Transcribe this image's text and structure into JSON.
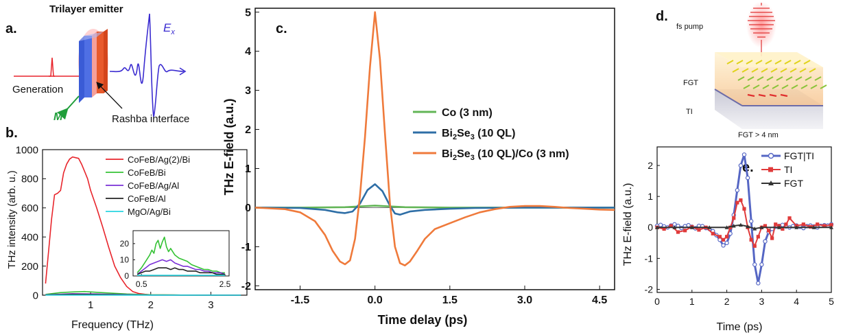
{
  "panel_a": {
    "letter": "a.",
    "title": "Trilayer emitter",
    "label_generation": "Generation",
    "label_m": "M",
    "label_rashba": "Rashba interface",
    "label_ex_main": "E",
    "label_ex_sub": "x",
    "colors": {
      "pulse": "#e8242b",
      "wave": "#3a2bd0",
      "m_arrow": "#1f9e3a"
    }
  },
  "panel_d": {
    "letter": "d.",
    "label_pump": "fs pump",
    "label_fgt": "FGT",
    "label_ti": "TI",
    "label_condition": "FGT > 4 nm"
  },
  "chart_data": [
    {
      "id": "b",
      "letter": "b.",
      "type": "line",
      "xlabel": "Frequency (THz)",
      "ylabel": "THz intensity (arb. u.)",
      "xlim": [
        0.2,
        3.6
      ],
      "ylim": [
        0,
        1000
      ],
      "xticks": [
        1,
        2,
        3
      ],
      "yticks": [
        0,
        200,
        400,
        600,
        800,
        1000
      ],
      "legend_position": "top-right",
      "series": [
        {
          "name": "CoFeB/Ag(2)/Bi",
          "color": "#e8242b",
          "x": [
            0.25,
            0.3,
            0.35,
            0.4,
            0.45,
            0.5,
            0.55,
            0.6,
            0.65,
            0.7,
            0.75,
            0.8,
            0.85,
            0.9,
            0.95,
            1.0,
            1.1,
            1.2,
            1.3,
            1.4,
            1.5,
            1.6,
            1.7,
            1.8,
            1.9,
            2.0,
            2.2,
            2.5,
            3.0,
            3.5
          ],
          "y": [
            80,
            300,
            520,
            690,
            700,
            720,
            840,
            900,
            935,
            950,
            945,
            940,
            900,
            850,
            800,
            720,
            600,
            470,
            330,
            200,
            120,
            60,
            25,
            12,
            6,
            3,
            2,
            1,
            0,
            0
          ]
        },
        {
          "name": "CoFeB/Bi",
          "color": "#34c234",
          "x": [
            0.25,
            0.5,
            0.7,
            0.9,
            1.1,
            1.3,
            1.6,
            2.0,
            2.5,
            3.5
          ],
          "y": [
            5,
            18,
            22,
            25,
            20,
            15,
            8,
            3,
            1,
            0
          ]
        },
        {
          "name": "CoFeB/Ag/Al",
          "color": "#7a2fd6",
          "x": [
            0.25,
            0.7,
            1.1,
            1.6,
            2.0,
            3.5
          ],
          "y": [
            3,
            10,
            8,
            4,
            1,
            0
          ]
        },
        {
          "name": "CoFeB/Al",
          "color": "#222222",
          "x": [
            0.25,
            0.7,
            1.1,
            1.6,
            2.0,
            3.5
          ],
          "y": [
            2,
            6,
            5,
            2,
            1,
            0
          ]
        },
        {
          "name": "MgO/Ag/Bi",
          "color": "#28d4e0",
          "x": [
            0.25,
            3.5
          ],
          "y": [
            1,
            0
          ]
        }
      ],
      "inset": {
        "xlim": [
          0.3,
          2.6
        ],
        "ylim": [
          0,
          28
        ],
        "xticks": [
          0.5,
          2.5
        ],
        "yticks": [
          0,
          10,
          20
        ],
        "series": [
          {
            "color": "#34c234",
            "x": [
              0.4,
              0.5,
              0.6,
              0.7,
              0.75,
              0.8,
              0.85,
              0.9,
              0.95,
              1.0,
              1.05,
              1.1,
              1.15,
              1.2,
              1.3,
              1.4,
              1.5,
              1.6,
              1.7,
              1.8,
              1.9,
              2.0,
              2.1,
              2.2,
              2.3,
              2.4,
              2.5
            ],
            "y": [
              2,
              5,
              9,
              13,
              16,
              14,
              20,
              22,
              17,
              21,
              24,
              18,
              15,
              17,
              13,
              11,
              10,
              9,
              7,
              6,
              5,
              4,
              4,
              3,
              3,
              2,
              2
            ]
          },
          {
            "color": "#7a2fd6",
            "x": [
              0.4,
              0.5,
              0.6,
              0.7,
              0.8,
              0.9,
              1.0,
              1.1,
              1.2,
              1.3,
              1.4,
              1.5,
              1.6,
              1.7,
              1.8,
              1.9,
              2.0,
              2.1,
              2.2,
              2.3,
              2.4,
              2.5
            ],
            "y": [
              1,
              3,
              5,
              7,
              8,
              9,
              10,
              9,
              10,
              8,
              7,
              6,
              6,
              5,
              4,
              4,
              3,
              3,
              2,
              2,
              2,
              1
            ]
          },
          {
            "color": "#222222",
            "x": [
              0.4,
              0.5,
              0.6,
              0.7,
              0.8,
              0.9,
              1.0,
              1.1,
              1.2,
              1.3,
              1.4,
              1.5,
              1.6,
              1.7,
              1.8,
              1.9,
              2.0,
              2.1,
              2.2,
              2.3,
              2.4,
              2.5
            ],
            "y": [
              1,
              2,
              3,
              3,
              4,
              5,
              5,
              5,
              4,
              5,
              4,
              4,
              3,
              3,
              3,
              2,
              2,
              2,
              2,
              1,
              1,
              1
            ]
          },
          {
            "color": "#28d4e0",
            "x": [
              0.4,
              2.5
            ],
            "y": [
              0.4,
              0.4
            ]
          }
        ]
      }
    },
    {
      "id": "c",
      "letter": "c.",
      "type": "line",
      "xlabel": "Time delay (ps)",
      "ylabel": "THz E-field (a.u.)",
      "xlim": [
        -2.4,
        4.8
      ],
      "ylim": [
        -2.1,
        5.1
      ],
      "xticks": [
        -1.5,
        0.0,
        1.5,
        3.0,
        4.5
      ],
      "xtick_labels": [
        "-1.5",
        "0.0",
        "1.5",
        "3.0",
        "4.5"
      ],
      "yticks": [
        -2,
        -1,
        0,
        1,
        2,
        3,
        4,
        5
      ],
      "legend_position": "center-right",
      "series": [
        {
          "name": "Co (3 nm)",
          "color": "#62b556",
          "x": [
            -2.4,
            -1.5,
            -0.6,
            -0.3,
            0.0,
            0.3,
            0.6,
            1.5,
            3.0,
            4.8
          ],
          "y": [
            0,
            0,
            0.01,
            0.03,
            0.05,
            0.03,
            0.01,
            0,
            0,
            0
          ]
        },
        {
          "name_main": "Bi",
          "name_sub": "2",
          "name_rest": "Se",
          "name_sub2": "3",
          "name_tail": " (10 QL)",
          "color": "#2e6ea6",
          "x": [
            -2.4,
            -1.5,
            -1.0,
            -0.75,
            -0.6,
            -0.45,
            -0.3,
            -0.15,
            0.0,
            0.15,
            0.3,
            0.4,
            0.5,
            0.7,
            1.0,
            1.5,
            2.0,
            3.0,
            4.8
          ],
          "y": [
            0,
            -0.01,
            -0.06,
            -0.12,
            -0.14,
            -0.1,
            0.1,
            0.45,
            0.6,
            0.42,
            0.05,
            -0.15,
            -0.18,
            -0.1,
            -0.06,
            -0.03,
            -0.01,
            0,
            0
          ]
        },
        {
          "name_main": "Bi",
          "name_sub": "2",
          "name_rest": "Se",
          "name_sub2": "3",
          "name_tail": " (10 QL)/Co (3 nm)",
          "color": "#ef7a3b",
          "x": [
            -2.4,
            -1.8,
            -1.5,
            -1.2,
            -1.0,
            -0.85,
            -0.7,
            -0.6,
            -0.5,
            -0.4,
            -0.3,
            -0.2,
            -0.1,
            0.0,
            0.1,
            0.2,
            0.3,
            0.4,
            0.5,
            0.6,
            0.7,
            0.85,
            1.0,
            1.2,
            1.5,
            1.8,
            2.1,
            2.4,
            2.7,
            3.0,
            3.3,
            3.6,
            3.9,
            4.2,
            4.5,
            4.8
          ],
          "y": [
            0,
            -0.04,
            -0.12,
            -0.35,
            -0.7,
            -1.1,
            -1.38,
            -1.45,
            -1.35,
            -0.8,
            0.3,
            1.8,
            3.6,
            5.0,
            3.8,
            1.9,
            0.1,
            -1.0,
            -1.42,
            -1.48,
            -1.38,
            -1.1,
            -0.8,
            -0.55,
            -0.4,
            -0.25,
            -0.12,
            -0.04,
            0.02,
            0.04,
            0.04,
            0.02,
            -0.01,
            -0.03,
            -0.05,
            -0.06
          ]
        }
      ]
    },
    {
      "id": "e",
      "letter": "e.",
      "type": "line",
      "xlabel": "Time (ps)",
      "ylabel": "THz E-field (a.u.)",
      "xlim": [
        0,
        5
      ],
      "ylim": [
        -2.1,
        2.6
      ],
      "xticks": [
        0,
        1,
        2,
        3,
        4,
        5
      ],
      "yticks": [
        -2,
        -1,
        0,
        1,
        2
      ],
      "legend_position": "top-right",
      "series": [
        {
          "name": "FGT|TI",
          "color": "#5566c4",
          "marker": "circle",
          "x": [
            0.0,
            0.1,
            0.2,
            0.3,
            0.4,
            0.5,
            0.6,
            0.7,
            0.8,
            0.9,
            1.0,
            1.1,
            1.2,
            1.3,
            1.4,
            1.5,
            1.6,
            1.7,
            1.8,
            1.9,
            2.0,
            2.1,
            2.2,
            2.3,
            2.4,
            2.5,
            2.6,
            2.7,
            2.8,
            2.9,
            3.0,
            3.1,
            3.2,
            3.3,
            3.4,
            3.5,
            3.6,
            3.7,
            3.8,
            3.9,
            4.0,
            4.1,
            4.2,
            4.3,
            4.4,
            4.5,
            4.6,
            4.7,
            4.8,
            4.9,
            5.0
          ],
          "y": [
            0.05,
            0.08,
            0.03,
            0.0,
            0.06,
            0.1,
            0.05,
            -0.02,
            0.04,
            0.07,
            0.02,
            -0.03,
            0.05,
            0.04,
            -0.02,
            -0.05,
            -0.12,
            -0.25,
            -0.4,
            -0.58,
            -0.5,
            -0.2,
            0.4,
            1.2,
            2.0,
            2.35,
            1.6,
            0.2,
            -1.2,
            -1.8,
            -1.2,
            -0.45,
            -0.15,
            -0.05,
            0.02,
            0.05,
            0.08,
            0.03,
            0.0,
            0.04,
            0.06,
            0.02,
            -0.02,
            0.04,
            0.06,
            0.03,
            0.0,
            0.05,
            0.07,
            0.06,
            0.1
          ]
        },
        {
          "name": "TI",
          "color": "#e03a3a",
          "marker": "square",
          "x": [
            0.0,
            0.2,
            0.4,
            0.6,
            0.8,
            1.0,
            1.2,
            1.4,
            1.6,
            1.8,
            1.9,
            2.0,
            2.1,
            2.2,
            2.3,
            2.4,
            2.5,
            2.6,
            2.7,
            2.8,
            2.9,
            3.0,
            3.1,
            3.2,
            3.3,
            3.4,
            3.5,
            3.6,
            3.7,
            3.8,
            4.0,
            4.2,
            4.4,
            4.6,
            4.8,
            5.0
          ],
          "y": [
            0.0,
            -0.05,
            0.05,
            -0.15,
            -0.1,
            0.02,
            -0.08,
            0.0,
            -0.2,
            -0.3,
            -0.4,
            -0.3,
            0.0,
            0.3,
            0.8,
            0.88,
            0.6,
            0.0,
            -0.4,
            -0.6,
            -0.3,
            0.0,
            0.05,
            -0.1,
            -0.35,
            0.1,
            0.05,
            -0.05,
            0.1,
            0.3,
            0.05,
            0.1,
            0.02,
            0.1,
            0.05,
            0.08
          ]
        },
        {
          "name": "FGT",
          "color": "#333333",
          "marker": "triangle",
          "x": [
            0.0,
            0.5,
            1.0,
            1.5,
            2.0,
            2.2,
            2.4,
            2.6,
            2.8,
            3.0,
            3.5,
            4.0,
            4.5,
            5.0
          ],
          "y": [
            0,
            0,
            0,
            0,
            0,
            0.05,
            0.08,
            0.03,
            -0.04,
            0,
            0,
            0,
            0,
            0
          ]
        }
      ]
    }
  ]
}
